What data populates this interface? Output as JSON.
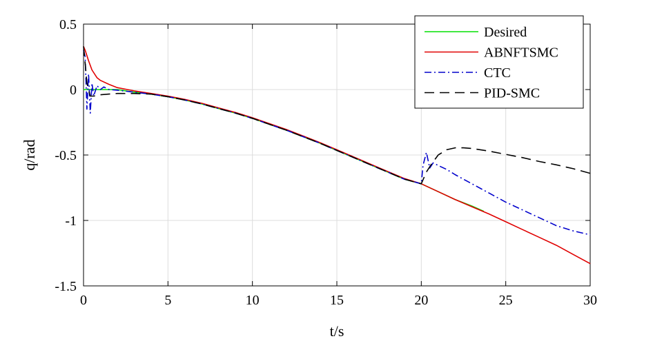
{
  "chart_data": {
    "type": "line",
    "xlabel": "t/s",
    "ylabel": "q/rad",
    "xlim": [
      0,
      30
    ],
    "ylim": [
      -1.5,
      0.5
    ],
    "xticks": [
      0,
      5,
      10,
      15,
      20,
      25,
      30
    ],
    "xtick_labels": [
      "0",
      "5",
      "10",
      "15",
      "20",
      "25",
      "30"
    ],
    "yticks": [
      -1.5,
      -1,
      -0.5,
      0,
      0.5
    ],
    "ytick_labels": [
      "-1.5",
      "-1",
      "-0.5",
      "0",
      "0.5"
    ],
    "grid": true,
    "legend_position": "top-right",
    "series": [
      {
        "name": "Desired",
        "color": "#00e000",
        "style": "solid",
        "x": [
          0,
          0.5,
          1,
          1.5,
          2,
          3,
          4,
          5,
          6,
          7,
          8,
          9,
          10,
          11,
          12,
          13,
          14,
          15,
          16,
          17,
          18,
          19,
          20,
          21,
          22,
          23,
          23.7
        ],
        "y": [
          0,
          0,
          0,
          0,
          0,
          -0.02,
          -0.035,
          -0.055,
          -0.08,
          -0.11,
          -0.145,
          -0.18,
          -0.22,
          -0.265,
          -0.31,
          -0.36,
          -0.41,
          -0.465,
          -0.52,
          -0.575,
          -0.63,
          -0.685,
          -0.72,
          -0.78,
          -0.84,
          -0.89,
          -0.93
        ]
      },
      {
        "name": "ABNFTSMC",
        "color": "#e00000",
        "style": "solid",
        "x": [
          0,
          0.1,
          0.3,
          0.5,
          0.8,
          1,
          1.5,
          2,
          3,
          4,
          5,
          6,
          7,
          8,
          9,
          10,
          11,
          12,
          13,
          14,
          15,
          16,
          17,
          18,
          19,
          20,
          21,
          22,
          23,
          24,
          25,
          26,
          27,
          28,
          29,
          30
        ],
        "y": [
          0.33,
          0.3,
          0.22,
          0.15,
          0.09,
          0.07,
          0.04,
          0.015,
          -0.01,
          -0.03,
          -0.05,
          -0.075,
          -0.105,
          -0.14,
          -0.175,
          -0.215,
          -0.26,
          -0.305,
          -0.355,
          -0.405,
          -0.46,
          -0.515,
          -0.57,
          -0.625,
          -0.68,
          -0.72,
          -0.78,
          -0.84,
          -0.895,
          -0.95,
          -1.01,
          -1.07,
          -1.13,
          -1.19,
          -1.26,
          -1.33
        ]
      },
      {
        "name": "CTC",
        "color": "#0000cc",
        "style": "dash-dot",
        "x": [
          0,
          0.1,
          0.2,
          0.3,
          0.4,
          0.5,
          0.6,
          0.8,
          1,
          1.2,
          1.5,
          2,
          3,
          4,
          5,
          6,
          7,
          8,
          9,
          10,
          11,
          12,
          13,
          14,
          15,
          16,
          17,
          18,
          19,
          20,
          20.1,
          20.3,
          20.5,
          20.7,
          21,
          21.5,
          22,
          23,
          24,
          25,
          26,
          27,
          28,
          29,
          30
        ],
        "y": [
          0.3,
          0.25,
          -0.15,
          0.12,
          -0.18,
          0.05,
          -0.05,
          0.03,
          0.0,
          0.02,
          0.0,
          -0.005,
          -0.02,
          -0.035,
          -0.055,
          -0.08,
          -0.11,
          -0.145,
          -0.18,
          -0.22,
          -0.265,
          -0.31,
          -0.36,
          -0.41,
          -0.465,
          -0.52,
          -0.575,
          -0.63,
          -0.685,
          -0.72,
          -0.58,
          -0.48,
          -0.6,
          -0.56,
          -0.58,
          -0.61,
          -0.65,
          -0.72,
          -0.79,
          -0.86,
          -0.92,
          -0.98,
          -1.04,
          -1.08,
          -1.11
        ]
      },
      {
        "name": "PID-SMC",
        "color": "#000000",
        "style": "dashed",
        "x": [
          0,
          0.1,
          0.2,
          0.4,
          0.6,
          1,
          1.5,
          2,
          3,
          4,
          5,
          6,
          7,
          8,
          9,
          10,
          11,
          12,
          13,
          14,
          15,
          16,
          17,
          18,
          19,
          20,
          20.3,
          20.6,
          21,
          21.5,
          22,
          22.5,
          23,
          24,
          25,
          26,
          27,
          28,
          29,
          30
        ],
        "y": [
          0.33,
          0.2,
          0.05,
          -0.05,
          -0.05,
          -0.04,
          -0.035,
          -0.03,
          -0.03,
          -0.035,
          -0.055,
          -0.08,
          -0.11,
          -0.145,
          -0.18,
          -0.22,
          -0.265,
          -0.31,
          -0.36,
          -0.41,
          -0.465,
          -0.52,
          -0.575,
          -0.63,
          -0.685,
          -0.72,
          -0.63,
          -0.57,
          -0.5,
          -0.46,
          -0.445,
          -0.445,
          -0.45,
          -0.47,
          -0.495,
          -0.52,
          -0.55,
          -0.575,
          -0.605,
          -0.64
        ]
      }
    ]
  }
}
